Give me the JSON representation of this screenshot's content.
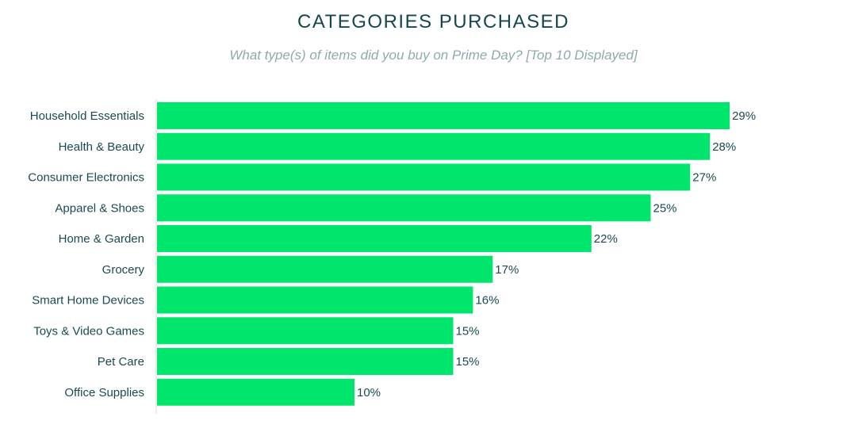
{
  "chart_data": {
    "type": "bar",
    "orientation": "horizontal",
    "title": "CATEGORIES PURCHASED",
    "subtitle": "What type(s) of items did you buy on Prime Day? [Top 10 Displayed]",
    "categories": [
      "Household Essentials",
      "Health & Beauty",
      "Consumer Electronics",
      "Apparel & Shoes",
      "Home & Garden",
      "Grocery",
      "Smart Home Devices",
      "Toys & Video Games",
      "Pet Care",
      "Office Supplies"
    ],
    "values": [
      29,
      28,
      27,
      25,
      22,
      17,
      16,
      15,
      15,
      10
    ],
    "value_labels": [
      "29%",
      "28%",
      "27%",
      "25%",
      "22%",
      "17%",
      "16%",
      "15%",
      "15%",
      "10%"
    ],
    "xlabel": "",
    "ylabel": "",
    "xlim": [
      0,
      30
    ],
    "grid": false,
    "colors": {
      "bar": "#00e66c",
      "text": "#1b4a50",
      "axis": "#d9d9d9"
    }
  }
}
